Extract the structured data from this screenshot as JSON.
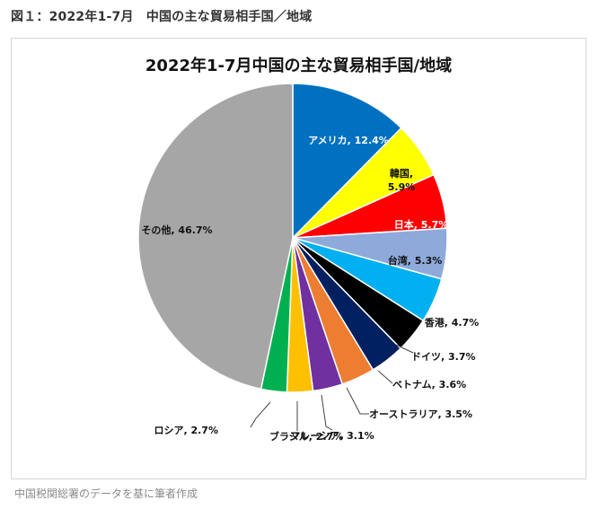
{
  "figure_caption": "図１：2022年1-7月　中国の主な貿易相手国／地域",
  "source_note": "中国税関総署のデータを基に筆者作成",
  "chart_data": {
    "type": "pie",
    "title": "2022年1-7月中国の主な貿易相手国/地域",
    "start": "12 o'clock",
    "direction": "clockwise",
    "slices": [
      {
        "name": "アメリカ",
        "value": 12.4,
        "label": "アメリカ, 12.4%",
        "color": "#0070c0",
        "label_color": "#ffffff"
      },
      {
        "name": "韓国",
        "value": 5.9,
        "label": "韓国,\n5.9%",
        "color": "#ffff00",
        "label_color": "#111111"
      },
      {
        "name": "日本",
        "value": 5.7,
        "label": "日本, 5.7%",
        "color": "#ff0000",
        "label_color": "#ffffff"
      },
      {
        "name": "台湾",
        "value": 5.3,
        "label": "台湾, 5.3%",
        "color": "#8eaadb",
        "label_color": "#111111"
      },
      {
        "name": "香港",
        "value": 4.7,
        "label": "香港, 4.7%",
        "color": "#00b0f0",
        "label_color": "#111111"
      },
      {
        "name": "ドイツ",
        "value": 3.7,
        "label": "ドイツ, 3.7%",
        "color": "#000000",
        "label_color": "#111111"
      },
      {
        "name": "ベトナム",
        "value": 3.6,
        "label": "ベトナム, 3.6%",
        "color": "#002060",
        "label_color": "#111111"
      },
      {
        "name": "オーストラリア",
        "value": 3.5,
        "label": "オーストラリア, 3.5%",
        "color": "#ed7d31",
        "label_color": "#111111"
      },
      {
        "name": "マレーシア",
        "value": 3.1,
        "label": "マレーシア, 3.1%",
        "color": "#7030a0",
        "label_color": "#111111"
      },
      {
        "name": "ブラジル",
        "value": 2.7,
        "label": "ブラジル, 2.7%",
        "color": "#ffc000",
        "label_color": "#111111"
      },
      {
        "name": "ロシア",
        "value": 2.7,
        "label": "ロシア, 2.7%",
        "color": "#00b050",
        "label_color": "#111111"
      },
      {
        "name": "その他",
        "value": 46.7,
        "label": "その他, 46.7%",
        "color": "#a6a6a6",
        "label_color": "#111111"
      }
    ]
  }
}
